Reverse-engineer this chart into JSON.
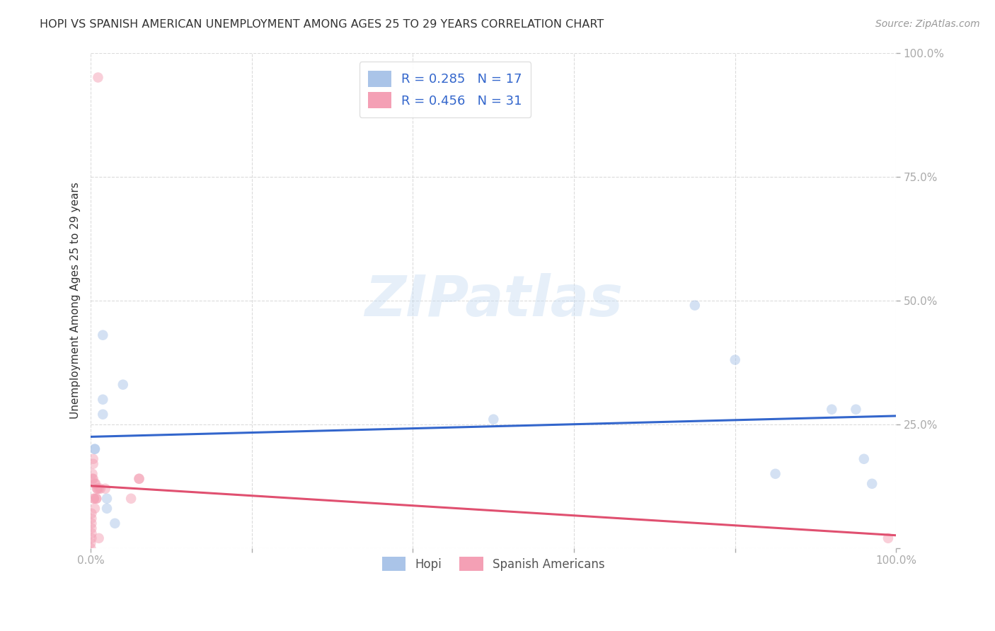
{
  "title": "HOPI VS SPANISH AMERICAN UNEMPLOYMENT AMONG AGES 25 TO 29 YEARS CORRELATION CHART",
  "source": "Source: ZipAtlas.com",
  "ylabel": "Unemployment Among Ages 25 to 29 years",
  "watermark": "ZIPatlas",
  "hopi_scatter": [
    [
      0.005,
      0.2
    ],
    [
      0.005,
      0.2
    ],
    [
      0.015,
      0.43
    ],
    [
      0.015,
      0.3
    ],
    [
      0.015,
      0.27
    ],
    [
      0.02,
      0.1
    ],
    [
      0.02,
      0.08
    ],
    [
      0.03,
      0.05
    ],
    [
      0.04,
      0.33
    ],
    [
      0.5,
      0.26
    ],
    [
      0.75,
      0.49
    ],
    [
      0.8,
      0.38
    ],
    [
      0.85,
      0.15
    ],
    [
      0.92,
      0.28
    ],
    [
      0.95,
      0.28
    ],
    [
      0.96,
      0.18
    ],
    [
      0.97,
      0.13
    ]
  ],
  "spanish_scatter": [
    [
      0.0,
      0.0
    ],
    [
      0.0,
      0.01
    ],
    [
      0.001,
      0.02
    ],
    [
      0.001,
      0.03
    ],
    [
      0.001,
      0.04
    ],
    [
      0.001,
      0.05
    ],
    [
      0.001,
      0.06
    ],
    [
      0.001,
      0.07
    ],
    [
      0.002,
      0.14
    ],
    [
      0.002,
      0.15
    ],
    [
      0.003,
      0.17
    ],
    [
      0.003,
      0.18
    ],
    [
      0.003,
      0.14
    ],
    [
      0.004,
      0.1
    ],
    [
      0.004,
      0.1
    ],
    [
      0.005,
      0.08
    ],
    [
      0.005,
      0.13
    ],
    [
      0.006,
      0.13
    ],
    [
      0.007,
      0.1
    ],
    [
      0.007,
      0.1
    ],
    [
      0.008,
      0.12
    ],
    [
      0.008,
      0.12
    ],
    [
      0.01,
      0.02
    ],
    [
      0.01,
      0.12
    ],
    [
      0.012,
      0.12
    ],
    [
      0.018,
      0.12
    ],
    [
      0.05,
      0.1
    ],
    [
      0.009,
      0.95
    ],
    [
      0.06,
      0.14
    ],
    [
      0.06,
      0.14
    ],
    [
      0.99,
      0.02
    ]
  ],
  "hopi_color": "#aac4e8",
  "spanish_color": "#f4a0b5",
  "hopi_line_color": "#3366cc",
  "spanish_line_color": "#e05070",
  "diagonal_color": "#e8a0b0",
  "hopi_R": 0.285,
  "hopi_N": 17,
  "spanish_R": 0.456,
  "spanish_N": 31,
  "xlim": [
    0.0,
    1.0
  ],
  "ylim": [
    0.0,
    1.0
  ],
  "xticks": [
    0.0,
    0.2,
    0.4,
    0.6,
    0.8,
    1.0
  ],
  "yticks": [
    0.0,
    0.25,
    0.5,
    0.75,
    1.0
  ],
  "xtick_labels": [
    "0.0%",
    "",
    "",
    "",
    "",
    "100.0%"
  ],
  "ytick_labels": [
    "",
    "25.0%",
    "50.0%",
    "75.0%",
    "100.0%"
  ],
  "title_color": "#333333",
  "tick_color": "#4499ee",
  "bg_color": "#ffffff",
  "grid_color": "#cccccc",
  "legend_value_color": "#3366cc",
  "scatter_size": 110,
  "scatter_alpha": 0.5,
  "line_width": 2.2,
  "diagonal_style": "--"
}
